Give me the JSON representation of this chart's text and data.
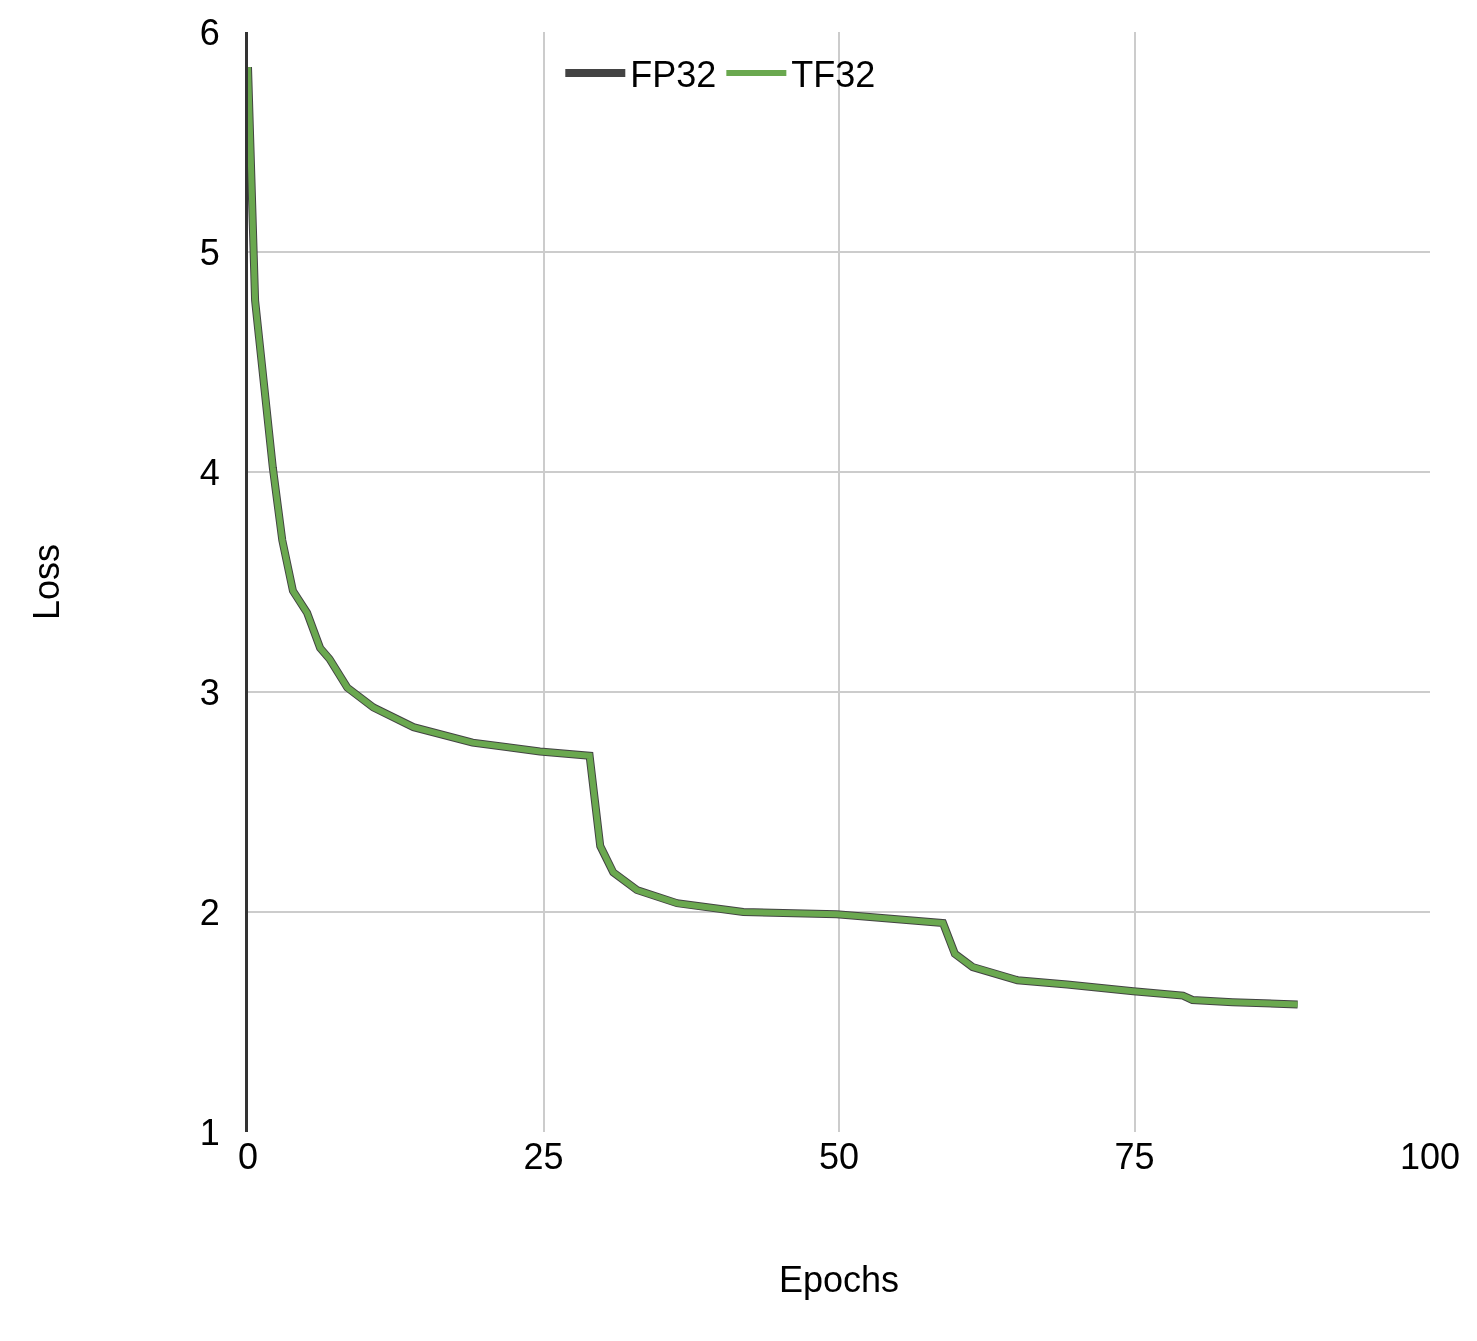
{
  "chart_data": {
    "type": "line",
    "xlabel": "Epochs",
    "ylabel": "Loss",
    "x": [
      0,
      0.6,
      2.1,
      2.9,
      3.8,
      5.0,
      6.1,
      6.9,
      8.4,
      10.6,
      14.0,
      19.0,
      24.7,
      28.9,
      29.8,
      30.9,
      32.9,
      36.3,
      41.9,
      49.8,
      58.8,
      59.8,
      61.3,
      65.1,
      69.3,
      74.9,
      79.1,
      79.9,
      83.3,
      88.8
    ],
    "series": [
      {
        "name": "FP32",
        "color": "#434343",
        "values": [
          5.84,
          4.78,
          4.02,
          3.69,
          3.46,
          3.36,
          3.2,
          3.15,
          3.02,
          2.93,
          2.84,
          2.77,
          2.73,
          2.71,
          2.3,
          2.18,
          2.1,
          2.04,
          2.0,
          1.99,
          1.95,
          1.81,
          1.75,
          1.69,
          1.67,
          1.64,
          1.62,
          1.6,
          1.59,
          1.58
        ]
      },
      {
        "name": "TF32",
        "color": "#6aa84f",
        "values": [
          5.84,
          4.78,
          4.02,
          3.69,
          3.46,
          3.36,
          3.2,
          3.15,
          3.02,
          2.93,
          2.84,
          2.77,
          2.73,
          2.71,
          2.3,
          2.18,
          2.1,
          2.04,
          2.0,
          1.99,
          1.95,
          1.81,
          1.75,
          1.69,
          1.67,
          1.64,
          1.62,
          1.6,
          1.59,
          1.58
        ]
      }
    ],
    "xlim": [
      0,
      100
    ],
    "xticks": [
      0,
      25,
      50,
      75,
      100
    ],
    "ylim": [
      1,
      6
    ],
    "yticks": [
      1,
      2,
      3,
      4,
      5,
      6
    ],
    "grid": true,
    "legend": "top",
    "marker": "none",
    "line_style": "solid"
  }
}
